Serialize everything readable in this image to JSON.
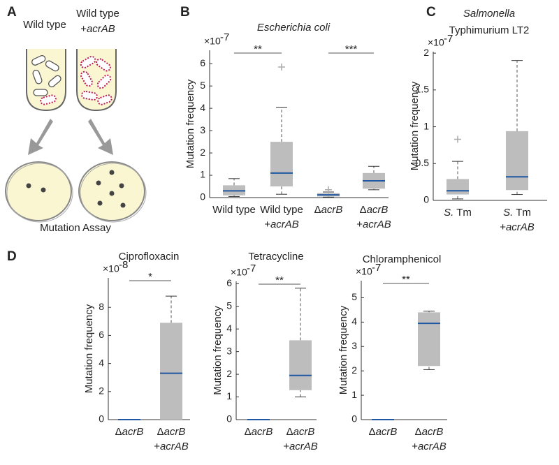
{
  "diagram": {
    "panel": "A",
    "tubes": [
      [
        "Wild type"
      ],
      [
        "Wild type",
        "+acrAB"
      ]
    ],
    "caption": "Mutation Assay"
  },
  "chart_data": [
    {
      "type": "box",
      "panel": "B",
      "title": [
        "Escherichia coli"
      ],
      "title_italic": [
        true
      ],
      "y_label": "Mutation frequency",
      "y_exponent": {
        "base": "×10",
        "exp": "-7"
      },
      "categories": [
        [
          "Wild type"
        ],
        [
          "Wild type",
          "+acrAB"
        ],
        [
          "ΔacrB"
        ],
        [
          "ΔacrB",
          "+acrAB"
        ]
      ],
      "boxes": [
        {
          "whislo": 0.05,
          "q1": 0.1,
          "med": 0.3,
          "q3": 0.55,
          "whishi": 0.85,
          "outliers": []
        },
        {
          "whislo": 0.15,
          "q1": 0.5,
          "med": 1.1,
          "q3": 2.5,
          "whishi": 4.05,
          "outliers": [
            5.85
          ]
        },
        {
          "whislo": 0.02,
          "q1": 0.05,
          "med": 0.12,
          "q3": 0.2,
          "whishi": 0.25,
          "outliers": [
            0.35
          ]
        },
        {
          "whislo": 0.35,
          "q1": 0.4,
          "med": 0.75,
          "q3": 1.1,
          "whishi": 1.4,
          "outliers": []
        }
      ],
      "annotations": [
        "**",
        "***"
      ],
      "ylim": [
        0,
        6.6
      ],
      "yticks": [
        0,
        1,
        2,
        3,
        4,
        5,
        6
      ],
      "color": "#bdbdbd",
      "median_color": "#1f57a3"
    },
    {
      "type": "box",
      "panel": "C",
      "title": [
        "Salmonella",
        "Typhimurium LT2"
      ],
      "title_italic": [
        true,
        false
      ],
      "y_label": "Mutation frequency",
      "y_exponent": {
        "base": "×10",
        "exp": "-7"
      },
      "categories": [
        [
          "S. Tm"
        ],
        [
          "S. Tm",
          "+acrAB"
        ]
      ],
      "boxes": [
        {
          "whislo": 0.02,
          "q1": 0.08,
          "med": 0.13,
          "q3": 0.29,
          "whishi": 0.53,
          "outliers": [
            0.83
          ]
        },
        {
          "whislo": 0.08,
          "q1": 0.14,
          "med": 0.32,
          "q3": 0.94,
          "whishi": 1.9,
          "outliers": []
        }
      ],
      "annotations": [],
      "ylim": [
        0,
        2.02
      ],
      "yticks": [
        0,
        0.5,
        1,
        1.5,
        2
      ],
      "color": "#bdbdbd",
      "median_color": "#1f57a3"
    },
    {
      "type": "box",
      "panel": "D",
      "title": [
        "Ciprofloxacin"
      ],
      "title_italic": [
        false
      ],
      "y_label": "Mutation frequency",
      "y_exponent": {
        "base": "×10",
        "exp": "-8"
      },
      "categories": [
        [
          "ΔacrB"
        ],
        [
          "ΔacrB",
          "+acrAB"
        ]
      ],
      "boxes": [
        {
          "whislo": 0,
          "q1": 0,
          "med": 0,
          "q3": 0,
          "whishi": 0,
          "outliers": []
        },
        {
          "whislo": 0,
          "q1": 0,
          "med": 3.3,
          "q3": 6.9,
          "whishi": 8.8,
          "outliers": []
        }
      ],
      "annotations": [
        "*"
      ],
      "ylim": [
        0,
        10.1
      ],
      "yticks": [
        0,
        2,
        4,
        6,
        8
      ],
      "color": "#bdbdbd",
      "median_color": "#1f57a3"
    },
    {
      "type": "box",
      "title": [
        "Tetracycline"
      ],
      "title_italic": [
        false
      ],
      "y_label": "Mutation frequency",
      "y_exponent": {
        "base": "×10",
        "exp": "-7"
      },
      "categories": [
        [
          "ΔacrB"
        ],
        [
          "ΔacrB",
          "+acrAB"
        ]
      ],
      "boxes": [
        {
          "whislo": 0,
          "q1": 0,
          "med": 0,
          "q3": 0,
          "whishi": 0,
          "outliers": []
        },
        {
          "whislo": 1.0,
          "q1": 1.3,
          "med": 1.95,
          "q3": 3.5,
          "whishi": 5.8,
          "outliers": []
        }
      ],
      "annotations": [
        "**"
      ],
      "ylim": [
        0,
        6.1
      ],
      "yticks": [
        0,
        1,
        2,
        3,
        4,
        5,
        6
      ],
      "color": "#bdbdbd",
      "median_color": "#1f57a3"
    },
    {
      "type": "box",
      "title": [
        "Chloramphenicol"
      ],
      "title_italic": [
        false
      ],
      "y_label": "Mutation frequency",
      "y_exponent": {
        "base": "×10",
        "exp": "-7"
      },
      "categories": [
        [
          "ΔacrB"
        ],
        [
          "ΔacrB",
          "+acrAB"
        ]
      ],
      "boxes": [
        {
          "whislo": 0,
          "q1": 0,
          "med": 0,
          "q3": 0,
          "whishi": 0,
          "outliers": []
        },
        {
          "whislo": 2.05,
          "q1": 2.2,
          "med": 3.95,
          "q3": 4.4,
          "whishi": 4.45,
          "outliers": []
        }
      ],
      "annotations": [
        "**"
      ],
      "ylim": [
        0,
        5.7
      ],
      "yticks": [
        0,
        1,
        2,
        3,
        4,
        5
      ],
      "color": "#bdbdbd",
      "median_color": "#1f57a3"
    }
  ]
}
